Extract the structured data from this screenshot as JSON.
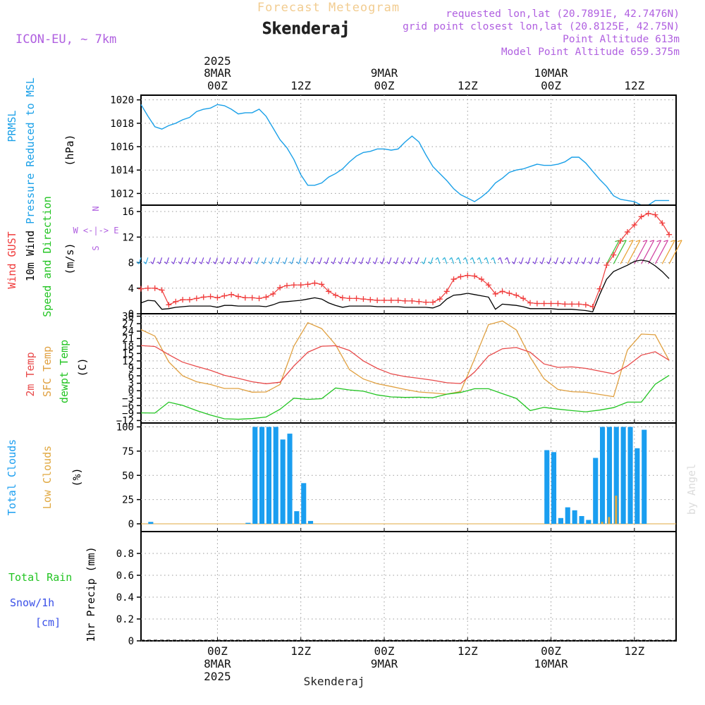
{
  "header": {
    "title": "Forecast Meteogram",
    "location": "Skenderaj",
    "model": "ICON-EU, ~ 7km",
    "requested": "requested lon,lat (20.7891E, 42.7476N)",
    "gridpoint": "grid point closest lon,lat (20.8125E, 42.75N)",
    "point_altitude": "Point Altitude 613m",
    "model_altitude": "Model Point Altitude 659.375m",
    "footer": "Skenderaj",
    "credit": "by Angel"
  },
  "colors": {
    "pressure": "#1aa0e8",
    "gust": "#f03c3c",
    "wind": "#000000",
    "temp": "#e84a4a",
    "sfc": "#e0a040",
    "dew": "#22c422",
    "total_cloud": "#1a9ef0",
    "low_cloud": "#e0a840",
    "purple": "#b060e0",
    "rain_green": "#22c422",
    "snow_blue": "#3a50e8"
  },
  "time_axis": {
    "top_labels": [
      {
        "line1": "2025",
        "line2": "8MAR",
        "line3": "00Z"
      },
      {
        "line1": "",
        "line2": "",
        "line3": "12Z"
      },
      {
        "line1": "",
        "line2": "9MAR",
        "line3": "00Z"
      },
      {
        "line1": "",
        "line2": "",
        "line3": "12Z"
      },
      {
        "line1": "",
        "line2": "10MAR",
        "line3": "00Z"
      },
      {
        "line1": "",
        "line2": "",
        "line3": "12Z"
      }
    ],
    "bottom_labels": [
      {
        "line1": "00Z",
        "line2": "8MAR",
        "line3": "2025"
      },
      {
        "line1": "12Z",
        "line2": "",
        "line3": ""
      },
      {
        "line1": "00Z",
        "line2": "9MAR",
        "line3": ""
      },
      {
        "line1": "12Z",
        "line2": "",
        "line3": ""
      },
      {
        "line1": "00Z",
        "line2": "10MAR",
        "line3": ""
      },
      {
        "line1": "12Z",
        "line2": "",
        "line3": ""
      }
    ],
    "tick_hours": [
      0,
      12,
      24,
      36,
      48,
      60
    ],
    "range_hours": [
      -11,
      66
    ]
  },
  "chart_data": [
    {
      "type": "line",
      "panel": "pressure",
      "labels": {
        "left1": "PRMSL",
        "left2": "Pressure Reduced to MSL",
        "unit": "(hPa)"
      },
      "ylim": [
        1011,
        1020.4
      ],
      "yticks": [
        1012,
        1014,
        1016,
        1018,
        1020
      ],
      "series": [
        {
          "name": "PRMSL",
          "x": [
            -11,
            -10,
            -9,
            -8,
            -7,
            -6,
            -5,
            -4,
            -3,
            -2,
            -1,
            0,
            1,
            2,
            3,
            4,
            5,
            6,
            7,
            8,
            9,
            10,
            11,
            12,
            13,
            14,
            15,
            16,
            17,
            18,
            19,
            20,
            21,
            22,
            23,
            24,
            25,
            26,
            27,
            28,
            29,
            30,
            31,
            32,
            33,
            34,
            35,
            36,
            37,
            38,
            39,
            40,
            41,
            42,
            43,
            44,
            45,
            46,
            47,
            48,
            49,
            50,
            51,
            52,
            53,
            54,
            55,
            56,
            57,
            58,
            59,
            60,
            61,
            62,
            63,
            64,
            65
          ],
          "values": [
            1019.6,
            1018.6,
            1017.7,
            1017.5,
            1017.8,
            1018.0,
            1018.3,
            1018.5,
            1019.0,
            1019.2,
            1019.3,
            1019.6,
            1019.5,
            1019.2,
            1018.8,
            1018.9,
            1018.9,
            1019.2,
            1018.6,
            1017.6,
            1016.6,
            1015.9,
            1014.9,
            1013.6,
            1012.7,
            1012.7,
            1012.9,
            1013.4,
            1013.7,
            1014.1,
            1014.7,
            1015.2,
            1015.5,
            1015.6,
            1015.8,
            1015.8,
            1015.7,
            1015.8,
            1016.4,
            1016.9,
            1016.4,
            1015.3,
            1014.3,
            1013.7,
            1013.1,
            1012.4,
            1011.9,
            1011.6,
            1011.3,
            1011.7,
            1012.2,
            1012.9,
            1013.3,
            1013.8,
            1014.0,
            1014.1,
            1014.3,
            1014.5,
            1014.4,
            1014.4,
            1014.5,
            1014.7,
            1015.1,
            1015.1,
            1014.6,
            1013.9,
            1013.2,
            1012.6,
            1011.8,
            1011.5,
            1011.4,
            1011.3,
            1011.0,
            1011.0,
            1011.4,
            1011.4,
            1011.4
          ]
        }
      ]
    },
    {
      "type": "line",
      "panel": "wind",
      "labels": {
        "left1": "Wind GUST",
        "left2": "10m Wind",
        "left3": "Speed and Direction",
        "unit": "(m/s)",
        "compass_n": "N",
        "compass_we": "W <-|-> E",
        "compass_s": "S"
      },
      "ylim": [
        0,
        17
      ],
      "yticks": [
        0,
        4,
        8,
        12,
        16
      ],
      "series": [
        {
          "name": "Wind GUST",
          "x": [
            -11,
            -10,
            -9,
            -8,
            -7,
            -6,
            -5,
            -4,
            -3,
            -2,
            -1,
            0,
            1,
            2,
            3,
            4,
            5,
            6,
            7,
            8,
            9,
            10,
            11,
            12,
            13,
            14,
            15,
            16,
            17,
            18,
            19,
            20,
            21,
            22,
            23,
            24,
            25,
            26,
            27,
            28,
            29,
            30,
            31,
            32,
            33,
            34,
            35,
            36,
            37,
            38,
            39,
            40,
            41,
            42,
            43,
            44,
            45,
            46,
            47,
            48,
            49,
            50,
            51,
            52,
            53,
            54,
            55,
            56,
            57,
            58,
            59,
            60,
            61,
            62,
            63,
            64,
            65
          ],
          "values": [
            3.9,
            4.0,
            4.0,
            3.7,
            1.4,
            1.9,
            2.2,
            2.2,
            2.4,
            2.6,
            2.7,
            2.5,
            2.8,
            3.0,
            2.7,
            2.5,
            2.5,
            2.4,
            2.6,
            3.1,
            4.1,
            4.4,
            4.5,
            4.5,
            4.6,
            4.8,
            4.6,
            3.5,
            2.9,
            2.5,
            2.4,
            2.4,
            2.3,
            2.2,
            2.1,
            2.1,
            2.1,
            2.1,
            2.0,
            2.0,
            1.9,
            1.8,
            1.8,
            2.3,
            3.5,
            5.4,
            5.8,
            6.0,
            5.9,
            5.4,
            4.5,
            3.1,
            3.5,
            3.2,
            2.9,
            2.4,
            1.7,
            1.6,
            1.6,
            1.6,
            1.6,
            1.5,
            1.5,
            1.5,
            1.4,
            1.1,
            3.9,
            7.6,
            9.2,
            11.4,
            12.8,
            13.9,
            15.2,
            15.7,
            15.5,
            14.2,
            12.4
          ]
        },
        {
          "name": "10m Wind",
          "x": [
            -11,
            -10,
            -9,
            -8,
            -7,
            -6,
            -5,
            -4,
            -3,
            -2,
            -1,
            0,
            1,
            2,
            3,
            4,
            5,
            6,
            7,
            8,
            9,
            10,
            11,
            12,
            13,
            14,
            15,
            16,
            17,
            18,
            19,
            20,
            21,
            22,
            23,
            24,
            25,
            26,
            27,
            28,
            29,
            30,
            31,
            32,
            33,
            34,
            35,
            36,
            37,
            38,
            39,
            40,
            41,
            42,
            43,
            44,
            45,
            46,
            47,
            48,
            49,
            50,
            51,
            52,
            53,
            54,
            55,
            56,
            57,
            58,
            59,
            60,
            61,
            62,
            63,
            64,
            65
          ],
          "values": [
            1.7,
            2.1,
            2.0,
            0.7,
            0.8,
            1.0,
            1.1,
            1.2,
            1.2,
            1.2,
            1.2,
            1.0,
            1.3,
            1.3,
            1.2,
            1.2,
            1.2,
            1.2,
            1.1,
            1.4,
            1.8,
            1.9,
            2.0,
            2.1,
            2.3,
            2.5,
            2.3,
            1.7,
            1.3,
            1.0,
            1.2,
            1.2,
            1.2,
            1.2,
            1.1,
            1.1,
            1.1,
            1.1,
            1.0,
            1.0,
            1.0,
            1.0,
            0.9,
            1.3,
            2.3,
            2.9,
            3.0,
            3.2,
            3.0,
            2.8,
            2.6,
            0.7,
            1.5,
            1.4,
            1.3,
            1.1,
            0.8,
            0.8,
            0.8,
            0.8,
            0.7,
            0.7,
            0.7,
            0.6,
            0.5,
            0.3,
            3.0,
            5.4,
            6.6,
            7.1,
            7.6,
            8.2,
            8.4,
            8.2,
            7.5,
            6.6,
            5.5
          ]
        }
      ]
    },
    {
      "type": "line",
      "panel": "temperature",
      "labels": {
        "left1": "2m Temp",
        "left2": "SFC Temp",
        "left3": "dewpt Temp",
        "unit": "(C)"
      },
      "ylim": [
        -13,
        31
      ],
      "yticks": [
        -12,
        -9,
        -6,
        -3,
        0,
        3,
        6,
        9,
        12,
        15,
        18,
        21,
        24,
        27,
        30
      ],
      "series": [
        {
          "name": "2m Temp",
          "x": [
            -11,
            -9,
            -7,
            -5,
            -3,
            -1,
            1,
            3,
            5,
            7,
            9,
            11,
            13,
            15,
            17,
            19,
            21,
            23,
            25,
            27,
            29,
            31,
            33,
            35,
            37,
            39,
            41,
            43,
            45,
            47,
            49,
            51,
            53,
            55,
            57,
            59,
            61,
            63,
            65
          ],
          "values": [
            18.2,
            17.8,
            14.5,
            11.5,
            9.8,
            8.2,
            6.2,
            5.0,
            3.6,
            2.8,
            3.4,
            10.0,
            15.5,
            17.9,
            18.1,
            16.2,
            12.0,
            9.0,
            6.8,
            5.7,
            5.0,
            4.2,
            3.2,
            2.9,
            7.5,
            14.0,
            16.9,
            17.4,
            15.5,
            10.8,
            9.4,
            9.6,
            9.0,
            7.9,
            6.8,
            10.0,
            14.3,
            15.7,
            12.3
          ]
        },
        {
          "name": "SFC Temp",
          "x": [
            -11,
            -9,
            -7,
            -5,
            -3,
            -1,
            1,
            3,
            5,
            7,
            9,
            11,
            13,
            15,
            17,
            19,
            21,
            23,
            25,
            27,
            29,
            31,
            33,
            35,
            37,
            39,
            41,
            43,
            45,
            47,
            49,
            51,
            53,
            55,
            57,
            59,
            61,
            63,
            65
          ],
          "values": [
            24.6,
            22.0,
            11.6,
            6.0,
            3.6,
            2.5,
            0.9,
            0.9,
            -0.6,
            -0.5,
            2.5,
            18.0,
            27.4,
            25.0,
            18.5,
            8.5,
            4.7,
            2.8,
            1.7,
            0.5,
            -0.5,
            -0.9,
            -1.4,
            -0.3,
            12.8,
            26.6,
            28.1,
            24.5,
            13.5,
            4.8,
            0.5,
            -0.4,
            -0.6,
            -1.5,
            -2.4,
            16.4,
            22.8,
            22.5,
            12.2
          ]
        },
        {
          "name": "dewpt Temp",
          "x": [
            -11,
            -9,
            -7,
            -5,
            -3,
            -1,
            1,
            3,
            5,
            7,
            9,
            11,
            13,
            15,
            17,
            19,
            21,
            23,
            25,
            27,
            29,
            31,
            33,
            35,
            37,
            39,
            41,
            43,
            45,
            47,
            49,
            51,
            53,
            55,
            57,
            59,
            61,
            63,
            65
          ],
          "values": [
            -8.9,
            -9.0,
            -4.6,
            -5.9,
            -8.0,
            -9.8,
            -11.3,
            -11.5,
            -11.2,
            -10.6,
            -7.5,
            -3.0,
            -3.5,
            -3.2,
            1.1,
            0.3,
            -0.2,
            -1.7,
            -2.5,
            -2.7,
            -2.6,
            -2.8,
            -1.4,
            -0.7,
            0.8,
            0.8,
            -1.2,
            -3.1,
            -8.0,
            -6.7,
            -7.4,
            -8.0,
            -8.5,
            -7.8,
            -6.8,
            -4.6,
            -4.6,
            2.6,
            6.2
          ]
        }
      ]
    },
    {
      "type": "bar",
      "panel": "clouds",
      "labels": {
        "left1": "Total Clouds",
        "left2": "Low Clouds",
        "unit": "(%)"
      },
      "ylim": [
        -8,
        104
      ],
      "yticks": [
        0,
        25,
        50,
        75,
        100
      ],
      "x": [
        -10,
        -9,
        -8,
        -7,
        -6,
        -5,
        -4,
        -3,
        -2,
        -1,
        0,
        1,
        2,
        3,
        4,
        5,
        6,
        7,
        8,
        9,
        10,
        11,
        12,
        13,
        14,
        15,
        16,
        17,
        18,
        19,
        20,
        21,
        22,
        23,
        24,
        25,
        26,
        27,
        28,
        29,
        30,
        31,
        32,
        33,
        34,
        35,
        36,
        37,
        38,
        39,
        40,
        41,
        42,
        43,
        44,
        45,
        46,
        47,
        48,
        49,
        50,
        51,
        52,
        53,
        54,
        55,
        56,
        57,
        58,
        59,
        60,
        61,
        62,
        63,
        64,
        65
      ],
      "series": [
        {
          "name": "Total Clouds",
          "values": [
            2,
            0,
            0,
            0,
            0,
            0,
            0,
            0,
            0,
            0,
            0,
            0,
            0,
            0,
            1,
            100,
            100,
            100,
            100,
            87,
            93,
            13,
            42,
            3,
            0,
            0,
            0,
            0,
            0,
            0,
            0,
            0,
            0,
            0,
            0,
            0,
            0,
            0,
            0,
            0,
            0,
            0,
            0,
            0,
            0,
            0,
            0,
            0,
            0,
            0,
            0,
            0,
            0,
            0,
            0,
            0,
            0,
            76,
            74,
            6,
            17,
            14,
            8,
            4,
            68,
            100,
            100,
            100,
            100,
            100,
            78,
            97,
            0,
            0,
            0,
            0
          ]
        },
        {
          "name": "Low Clouds",
          "values": [
            0,
            0,
            0,
            0,
            0,
            0,
            0,
            0,
            0,
            0,
            0,
            0,
            0,
            0,
            0,
            0,
            0,
            0,
            0,
            0,
            0,
            0,
            0,
            0,
            0,
            0,
            0,
            0,
            0,
            0,
            0,
            0,
            0,
            0,
            0,
            0,
            0,
            0,
            0,
            0,
            0,
            0,
            0,
            0,
            0,
            0,
            0,
            0,
            0,
            0,
            0,
            0,
            0,
            0,
            0,
            0,
            0,
            0,
            0,
            0,
            0,
            0,
            0,
            0,
            0,
            2,
            7,
            29,
            0,
            0,
            0,
            0,
            0,
            0,
            0,
            0
          ]
        }
      ]
    },
    {
      "type": "bar",
      "panel": "precip",
      "labels": {
        "left1": "Total  Rain",
        "left2": "Snow/1h",
        "left3": "[cm]",
        "unit": "1hr Precip (mm)"
      },
      "ylim": [
        0,
        1.0
      ],
      "yticks": [
        0,
        0.2,
        0.4,
        0.6,
        0.8
      ],
      "ytick_labels": [
        "0",
        "0.2",
        "0.4",
        "0.6",
        "0.8"
      ],
      "series": [
        {
          "name": "Total Rain",
          "values": []
        }
      ]
    }
  ]
}
